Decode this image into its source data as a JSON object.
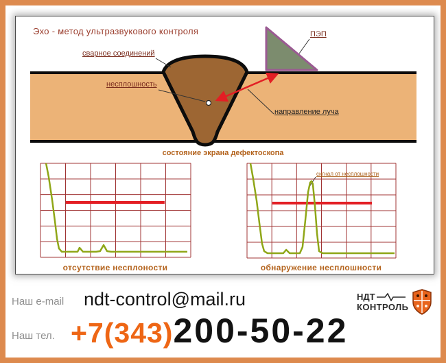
{
  "diagram": {
    "title": "Эхо - метод ультразвукового контроля",
    "weld_label": "сварное соединений",
    "defect_label": "несплошность",
    "probe_label": "ПЭП",
    "beam_label": "направление луча",
    "screen_caption": "состояние экрана дефектоскопа",
    "colors": {
      "frame_orange": "#dd8a4e",
      "plate_tan": "#ecb377",
      "weld_brown": "#9d6633",
      "probe_fill": "#7c8c6e",
      "probe_stroke": "#9a5a92",
      "beam_red": "#e31e24",
      "label_maroon": "#7b2d1e",
      "caption_brown": "#b4641e"
    }
  },
  "chart_data": [
    {
      "type": "line",
      "title": "отсутствие несплоности",
      "grid": {
        "cols": 6,
        "rows": 6,
        "color": "#a03434"
      },
      "trace_color": "#8fa617",
      "threshold": {
        "color": "#e31e24",
        "x0": 0.169,
        "x1": 0.826,
        "y": 0.416
      },
      "points": [
        [
          0.037,
          0.0
        ],
        [
          0.055,
          0.146
        ],
        [
          0.078,
          0.394
        ],
        [
          0.096,
          0.613
        ],
        [
          0.11,
          0.803
        ],
        [
          0.123,
          0.905
        ],
        [
          0.142,
          0.941
        ],
        [
          0.224,
          0.941
        ],
        [
          0.247,
          0.941
        ],
        [
          0.26,
          0.898
        ],
        [
          0.283,
          0.941
        ],
        [
          0.37,
          0.941
        ],
        [
          0.397,
          0.934
        ],
        [
          0.42,
          0.869
        ],
        [
          0.443,
          0.934
        ],
        [
          0.47,
          0.941
        ],
        [
          0.977,
          0.941
        ]
      ]
    },
    {
      "type": "line",
      "title": "обнаружение несплошности",
      "annotation": "сигнал от несплошности",
      "grid": {
        "cols": 6,
        "rows": 6,
        "color": "#a03434"
      },
      "trace_color": "#8fa617",
      "threshold": {
        "color": "#e31e24",
        "x0": 0.17,
        "x1": 0.839,
        "y": 0.42
      },
      "points": [
        [
          0.023,
          0.0
        ],
        [
          0.041,
          0.159
        ],
        [
          0.065,
          0.399
        ],
        [
          0.083,
          0.63
        ],
        [
          0.101,
          0.848
        ],
        [
          0.115,
          0.928
        ],
        [
          0.138,
          0.949
        ],
        [
          0.221,
          0.949
        ],
        [
          0.244,
          0.949
        ],
        [
          0.263,
          0.913
        ],
        [
          0.286,
          0.949
        ],
        [
          0.355,
          0.949
        ],
        [
          0.373,
          0.884
        ],
        [
          0.392,
          0.594
        ],
        [
          0.41,
          0.304
        ],
        [
          0.424,
          0.203
        ],
        [
          0.433,
          0.188
        ],
        [
          0.442,
          0.217
        ],
        [
          0.456,
          0.449
        ],
        [
          0.47,
          0.739
        ],
        [
          0.484,
          0.928
        ],
        [
          0.507,
          0.949
        ],
        [
          0.991,
          0.949
        ]
      ]
    }
  ],
  "footer": {
    "email_label": "Наш e-mail",
    "email": "ndt-control@mail.ru",
    "phone_label": "Наш тел.",
    "phone_prefix": "+7(343)",
    "phone_number": "200-50-22",
    "logo_line1": "НДТ",
    "logo_line2": "КОНТРОЛЬ",
    "phone_accent": "#ee6615"
  }
}
